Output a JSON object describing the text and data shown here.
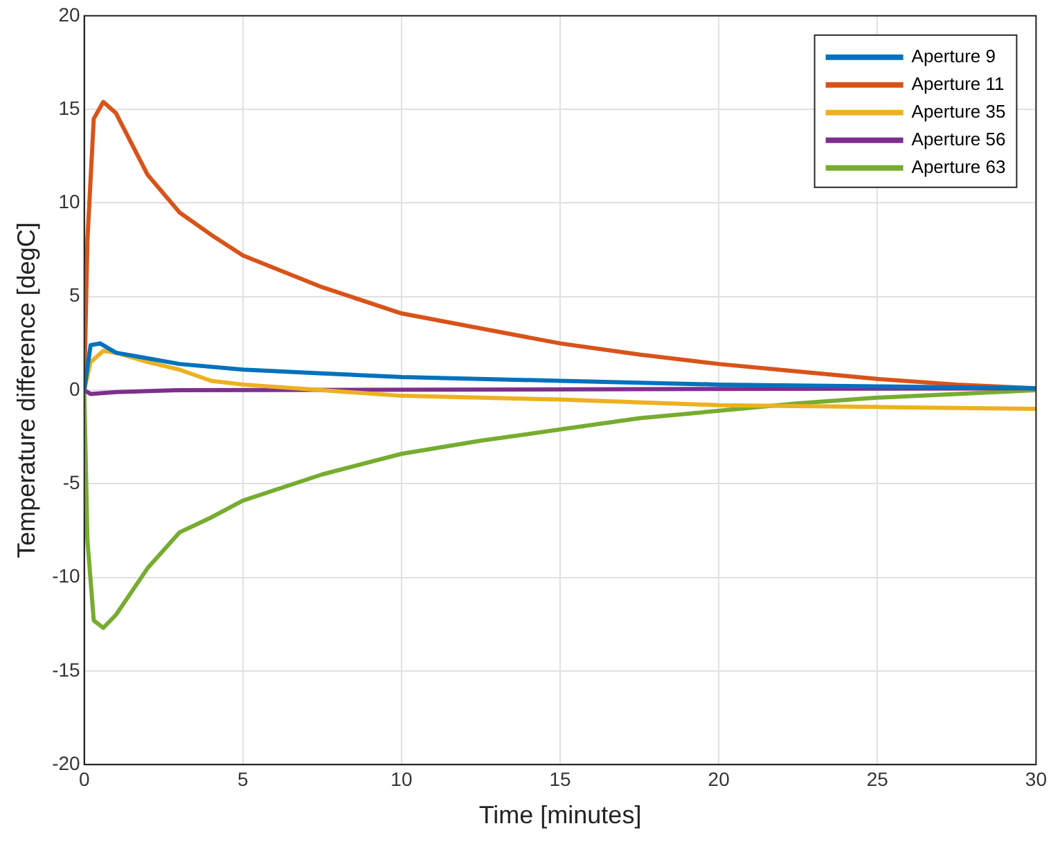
{
  "chart_data": {
    "type": "line",
    "xlabel": "Time [minutes]",
    "ylabel": "Temperature difference [degC]",
    "xlim": [
      0,
      30
    ],
    "xticks": [
      0,
      5,
      10,
      15,
      20,
      25,
      30
    ],
    "ylim": [
      -20,
      20
    ],
    "yticks": [
      -20,
      -15,
      -10,
      -5,
      0,
      5,
      10,
      15,
      20
    ],
    "grid": true,
    "legend": "top right",
    "marker": "none",
    "line_style": "solid",
    "series": [
      {
        "name": "Aperture 9",
        "color": "#0072bd",
        "x": [
          0,
          0.2,
          0.5,
          1,
          2,
          3,
          5,
          7.5,
          10,
          15,
          20,
          25,
          30
        ],
        "values": [
          0,
          2.4,
          2.5,
          2.0,
          1.7,
          1.4,
          1.1,
          0.9,
          0.7,
          0.5,
          0.3,
          0.2,
          0.1
        ]
      },
      {
        "name": "Aperture 11",
        "color": "#d95319",
        "x": [
          0,
          0.1,
          0.3,
          0.6,
          1,
          2,
          3,
          4,
          5,
          7.5,
          10,
          12.5,
          15,
          17.5,
          20,
          22.5,
          25,
          27.5,
          30
        ],
        "values": [
          0,
          8,
          14.5,
          15.4,
          14.8,
          11.5,
          9.5,
          8.3,
          7.2,
          5.5,
          4.1,
          3.3,
          2.5,
          1.9,
          1.4,
          1.0,
          0.6,
          0.3,
          0.1
        ]
      },
      {
        "name": "Aperture 35",
        "color": "#edb120",
        "x": [
          0,
          0.2,
          0.6,
          1,
          2,
          3,
          4,
          5,
          7.5,
          10,
          15,
          20,
          25,
          30
        ],
        "values": [
          0,
          1.5,
          2.1,
          2.0,
          1.5,
          1.1,
          0.5,
          0.3,
          0,
          -0.3,
          -0.5,
          -0.8,
          -0.9,
          -1.0
        ]
      },
      {
        "name": "Aperture 56",
        "color": "#7e2f8e",
        "x": [
          0,
          0.2,
          1,
          3,
          30
        ],
        "values": [
          0,
          -0.2,
          -0.1,
          0,
          0.1
        ]
      },
      {
        "name": "Aperture 63",
        "color": "#77ac30",
        "x": [
          0,
          0.1,
          0.3,
          0.6,
          1,
          2,
          3,
          4,
          5,
          7.5,
          10,
          12.5,
          15,
          17.5,
          20,
          22.5,
          25,
          27.5,
          30
        ],
        "values": [
          0,
          -8,
          -12.3,
          -12.7,
          -12,
          -9.5,
          -7.6,
          -6.8,
          -5.9,
          -4.5,
          -3.4,
          -2.7,
          -2.1,
          -1.5,
          -1.1,
          -0.7,
          -0.4,
          -0.2,
          0
        ]
      }
    ]
  }
}
